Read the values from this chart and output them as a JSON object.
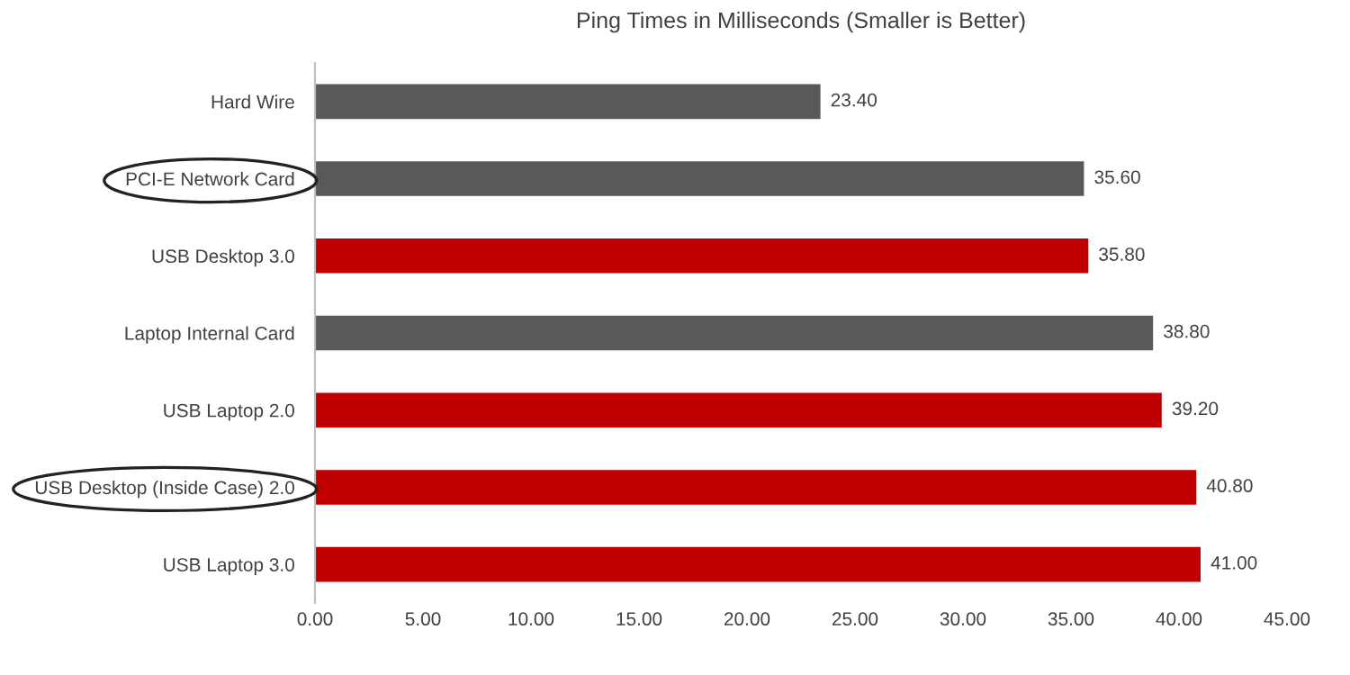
{
  "chart_data": {
    "type": "bar",
    "orientation": "horizontal",
    "title": "Ping Times in Milliseconds (Smaller is Better)",
    "categories": [
      "Hard Wire",
      "PCI-E Network Card",
      "USB Desktop 3.0",
      "Laptop Internal Card",
      "USB Laptop 2.0",
      "USB Desktop (Inside Case) 2.0",
      "USB Laptop 3.0"
    ],
    "values": [
      23.4,
      35.6,
      35.8,
      38.8,
      39.2,
      40.8,
      41.0
    ],
    "colors": [
      "#595959",
      "#595959",
      "#c00000",
      "#595959",
      "#c00000",
      "#c00000",
      "#c00000"
    ],
    "value_labels": [
      "23.40",
      "35.60",
      "35.80",
      "38.80",
      "39.20",
      "40.80",
      "41.00"
    ],
    "xlim": [
      0,
      45
    ],
    "xticks": [
      {
        "value": 0,
        "label": "0.00"
      },
      {
        "value": 5,
        "label": "5.00"
      },
      {
        "value": 10,
        "label": "10.00"
      },
      {
        "value": 15,
        "label": "15.00"
      },
      {
        "value": 20,
        "label": "20.00"
      },
      {
        "value": 25,
        "label": "25.00"
      },
      {
        "value": 30,
        "label": "30.00"
      },
      {
        "value": 35,
        "label": "35.00"
      },
      {
        "value": 40,
        "label": "40.00"
      },
      {
        "value": 45,
        "label": "45.00"
      }
    ],
    "grid": false,
    "legend": false
  }
}
